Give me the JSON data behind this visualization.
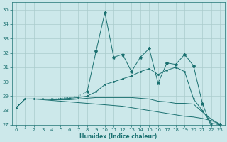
{
  "xlabel": "Humidex (Indice chaleur)",
  "bg_color": "#cce8ea",
  "grid_color": "#aacccc",
  "line_color": "#1a7070",
  "xlim": [
    -0.5,
    23.5
  ],
  "ylim": [
    27,
    35.5
  ],
  "yticks": [
    27,
    28,
    29,
    30,
    31,
    32,
    33,
    34,
    35
  ],
  "xticks": [
    0,
    1,
    2,
    3,
    4,
    5,
    6,
    7,
    8,
    9,
    10,
    11,
    12,
    13,
    14,
    15,
    16,
    17,
    18,
    19,
    20,
    21,
    22,
    23
  ],
  "line1_x": [
    0,
    1,
    2,
    3,
    4,
    5,
    6,
    7,
    8,
    9,
    10,
    11,
    12,
    13,
    14,
    15,
    16,
    17,
    18,
    19,
    20,
    21,
    22,
    23
  ],
  "line1_y": [
    28.2,
    28.8,
    28.8,
    28.8,
    28.8,
    28.85,
    28.9,
    29.0,
    29.3,
    32.1,
    34.8,
    31.7,
    31.9,
    30.7,
    31.7,
    32.3,
    29.9,
    31.3,
    31.2,
    31.9,
    31.1,
    28.5,
    26.9,
    27.05
  ],
  "line2_x": [
    0,
    1,
    2,
    3,
    4,
    5,
    6,
    7,
    8,
    9,
    10,
    11,
    12,
    13,
    14,
    15,
    16,
    17,
    18,
    19,
    20,
    21,
    22,
    23
  ],
  "line2_y": [
    28.2,
    28.8,
    28.8,
    28.8,
    28.8,
    28.8,
    28.85,
    28.9,
    29.0,
    29.3,
    29.8,
    30.0,
    30.2,
    30.4,
    30.7,
    30.9,
    30.5,
    30.8,
    31.0,
    30.7,
    28.8,
    28.0,
    27.1,
    27.05
  ],
  "line3_x": [
    0,
    1,
    2,
    3,
    4,
    5,
    6,
    7,
    8,
    9,
    10,
    11,
    12,
    13,
    14,
    15,
    16,
    17,
    18,
    19,
    20,
    21,
    22,
    23
  ],
  "line3_y": [
    28.2,
    28.8,
    28.8,
    28.75,
    28.7,
    28.65,
    28.6,
    28.55,
    28.5,
    28.45,
    28.4,
    28.35,
    28.3,
    28.2,
    28.1,
    28.0,
    27.9,
    27.8,
    27.7,
    27.6,
    27.55,
    27.45,
    27.3,
    27.05
  ],
  "line4_x": [
    0,
    1,
    2,
    3,
    4,
    5,
    6,
    7,
    8,
    9,
    10,
    11,
    12,
    13,
    14,
    15,
    16,
    17,
    18,
    19,
    20,
    21,
    22,
    23
  ],
  "line4_y": [
    28.2,
    28.8,
    28.8,
    28.8,
    28.75,
    28.75,
    28.75,
    28.8,
    28.85,
    28.9,
    28.9,
    28.9,
    28.9,
    28.9,
    28.85,
    28.8,
    28.65,
    28.6,
    28.5,
    28.5,
    28.45,
    27.9,
    27.4,
    27.05
  ]
}
